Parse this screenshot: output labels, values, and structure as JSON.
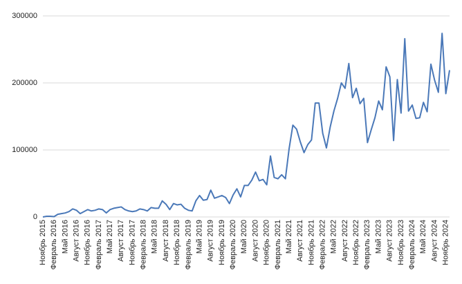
{
  "chart_data": {
    "type": "line",
    "categories": [
      "Ноябрь 2015",
      null,
      null,
      "Февраль 2016",
      null,
      null,
      "Май 2016",
      null,
      null,
      "Август 2016",
      null,
      null,
      "Ноябрь 2016",
      null,
      null,
      "Февраль 2017",
      null,
      null,
      "Май 2017",
      null,
      null,
      "Август 2017",
      null,
      null,
      "Ноябрь 2017",
      null,
      null,
      "Февраль 2018",
      null,
      null,
      "Май 2018",
      null,
      null,
      "Август 2018",
      null,
      null,
      "Ноябрь 2018",
      null,
      null,
      "Февраль 2019",
      null,
      null,
      "Май 2019",
      null,
      null,
      "Август 2019",
      null,
      null,
      "Ноябрь 2019",
      null,
      null,
      "Февраль 2020",
      null,
      null,
      "Май 2020",
      null,
      null,
      "Август 2020",
      null,
      null,
      "Ноябрь 2020",
      null,
      null,
      "Февраль 2021",
      null,
      null,
      "Май 2021",
      null,
      null,
      "Август 2021",
      null,
      null,
      "Ноябрь 2021",
      null,
      null,
      "Февраль 2022",
      null,
      null,
      "Май 2022",
      null,
      null,
      "Август 2022",
      null,
      null,
      "Ноябрь 2022",
      null,
      null,
      "Февраль 2023",
      null,
      null,
      "Май 2023",
      null,
      null,
      "Август 2023",
      null,
      null,
      "Ноябрь 2023",
      null,
      null,
      "Февраль 2024",
      null,
      null,
      "Май 2024",
      null,
      null,
      "Август 2024",
      null,
      null,
      "Ноябрь 2024",
      null
    ],
    "values": [
      0,
      1000,
      1000,
      500,
      4000,
      5000,
      6000,
      8000,
      12000,
      10000,
      5000,
      8000,
      11000,
      9000,
      10000,
      12000,
      11000,
      6000,
      11000,
      13000,
      14000,
      15000,
      11000,
      9000,
      8000,
      9000,
      12000,
      11000,
      9000,
      14000,
      13000,
      13000,
      24000,
      19000,
      11000,
      20000,
      18000,
      19000,
      13000,
      10000,
      9000,
      24000,
      32000,
      25000,
      26000,
      40000,
      28000,
      30000,
      32000,
      29000,
      20000,
      33000,
      42000,
      30000,
      47000,
      47000,
      55000,
      67000,
      54000,
      56000,
      48000,
      91000,
      59000,
      57000,
      63000,
      57000,
      102000,
      137000,
      131000,
      112000,
      96000,
      108000,
      115000,
      170000,
      170000,
      125000,
      103000,
      134000,
      158000,
      177000,
      200000,
      192000,
      229000,
      178000,
      192000,
      169000,
      177000,
      111000,
      130000,
      148000,
      173000,
      160000,
      224000,
      209000,
      114000,
      205000,
      155000,
      266000,
      158000,
      167000,
      147000,
      148000,
      171000,
      157000,
      228000,
      204000,
      186000,
      274000,
      184000,
      219000
    ],
    "color": "#4a78b8",
    "ylim": [
      0,
      300000
    ],
    "yticks": [
      0,
      100000,
      200000,
      300000
    ],
    "grid": true
  }
}
